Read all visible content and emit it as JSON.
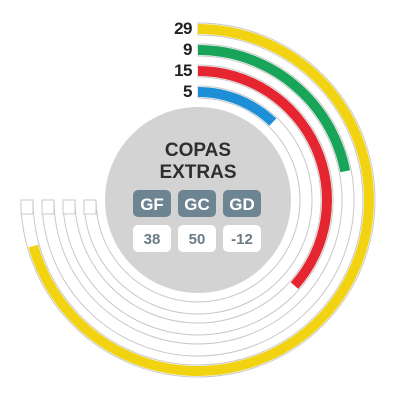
{
  "chart_data": {
    "type": "radial-bar",
    "title_lines": [
      "COPAS",
      "EXTRAS"
    ],
    "max_value": 35,
    "series": [
      {
        "value": 29,
        "color": "#f2d311"
      },
      {
        "value": 9,
        "color": "#18a55a"
      },
      {
        "value": 15,
        "color": "#e52630"
      },
      {
        "value": 5,
        "color": "#1c8fd6"
      }
    ],
    "stats": [
      {
        "label": "GF",
        "value": "38"
      },
      {
        "label": "GC",
        "value": "50"
      },
      {
        "label": "GD",
        "value": "-12"
      }
    ]
  },
  "colors": {
    "hub": "#d3d3d3",
    "badge": "#6d8592",
    "track_stroke": "#c8c8c8",
    "track_fill": "#ffffff"
  }
}
